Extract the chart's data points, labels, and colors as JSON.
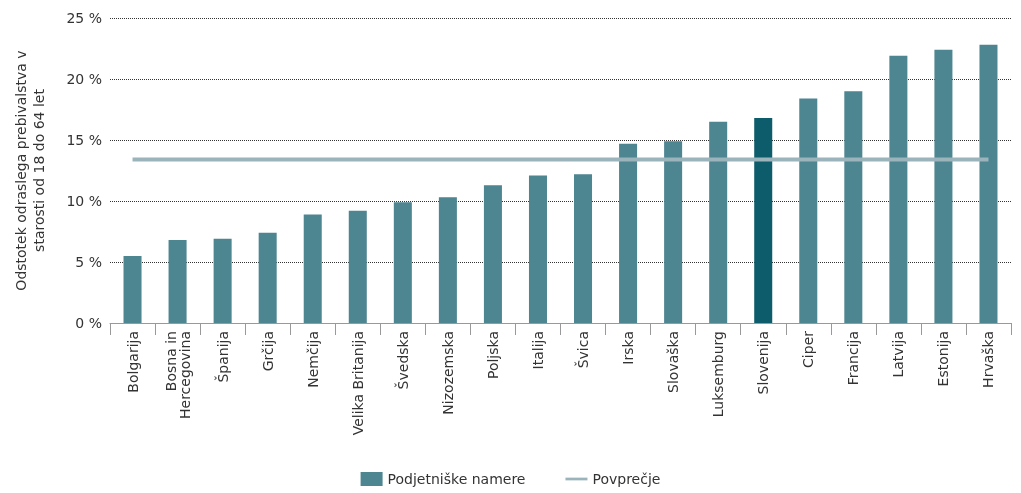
{
  "chart_data": {
    "type": "bar",
    "ylabel": "Odstotek odraslega prebivalstva v starosti od 18 do 64 let",
    "categories": [
      "Bolgarija",
      "Bosna in Hercegovina",
      "Španija",
      "Grčija",
      "Nemčija",
      "Velika Britanija",
      "Švedska",
      "Nizozemska",
      "Poljska",
      "Italija",
      "Švica",
      "Irska",
      "Slovaška",
      "Luksemburg",
      "Slovenija",
      "Ciper",
      "Francija",
      "Latvija",
      "Estonija",
      "Hrvaška"
    ],
    "series": [
      {
        "name": "Podjetniške namere",
        "color": "#4d8591",
        "colors": [
          "#4d8591",
          "#4d8591",
          "#4d8591",
          "#4d8591",
          "#4d8591",
          "#4d8591",
          "#4d8591",
          "#4d8591",
          "#4d8591",
          "#4d8591",
          "#4d8591",
          "#4d8591",
          "#4d8591",
          "#4d8591",
          "#0d5c6b",
          "#4d8591",
          "#4d8591",
          "#4d8591",
          "#4d8591",
          "#4d8591"
        ],
        "values": [
          5.5,
          6.8,
          6.9,
          7.4,
          8.9,
          9.2,
          9.9,
          10.3,
          11.3,
          12.1,
          12.2,
          14.7,
          14.9,
          16.5,
          16.8,
          18.4,
          19.0,
          21.9,
          22.4,
          22.8
        ]
      },
      {
        "name": "Povprečje",
        "type": "line",
        "color": "#9bb4bb",
        "marker": "none",
        "line_style": "solid",
        "values": [
          13.4,
          13.4,
          13.4,
          13.4,
          13.4,
          13.4,
          13.4,
          13.4,
          13.4,
          13.4,
          13.4,
          13.4,
          13.4,
          13.4,
          13.4,
          13.4,
          13.4,
          13.4,
          13.4,
          13.4
        ]
      }
    ],
    "ylim": [
      0,
      25
    ],
    "yticks": [
      {
        "value": 0,
        "label": "0 %"
      },
      {
        "value": 5,
        "label": "5 %"
      },
      {
        "value": 10,
        "label": "10 %"
      },
      {
        "value": 15,
        "label": "15 %"
      },
      {
        "value": 20,
        "label": "20 %"
      },
      {
        "value": 25,
        "label": "25 %"
      }
    ],
    "grid": "y",
    "legend": "bottom"
  }
}
